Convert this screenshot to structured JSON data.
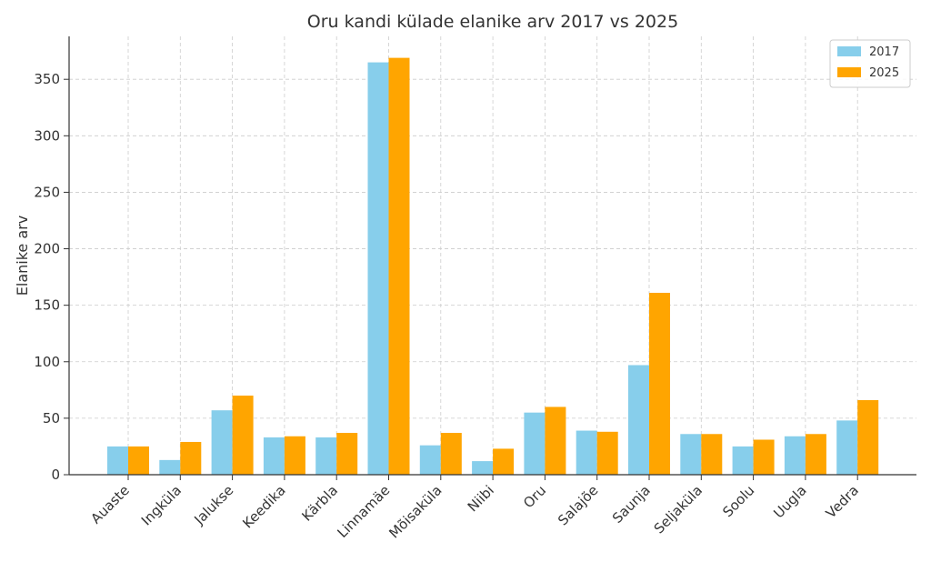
{
  "chart_data": {
    "type": "bar",
    "title": "Oru kandi külade elanike arv 2017 vs 2025",
    "xlabel": "",
    "ylabel": "Elanike arv",
    "ylim": [
      0,
      388
    ],
    "yticks": [
      0,
      50,
      100,
      150,
      200,
      250,
      300,
      350
    ],
    "grid": true,
    "legend_position": "top-right",
    "categories": [
      "Auaste",
      "Ingküla",
      "Jalukse",
      "Keedika",
      "Kärbla",
      "Linnamäe",
      "Mõisaküla",
      "Niibi",
      "Oru",
      "Salajõe",
      "Saunja",
      "Seljaküla",
      "Soolu",
      "Uugla",
      "Vedra"
    ],
    "series": [
      {
        "name": "2017",
        "color": "#87CEEB",
        "values": [
          25,
          13,
          57,
          33,
          33,
          365,
          26,
          12,
          55,
          39,
          97,
          36,
          25,
          34,
          48
        ]
      },
      {
        "name": "2025",
        "color": "#FFA500",
        "values": [
          25,
          29,
          70,
          34,
          37,
          369,
          37,
          23,
          60,
          38,
          161,
          36,
          31,
          36,
          66
        ]
      }
    ]
  }
}
